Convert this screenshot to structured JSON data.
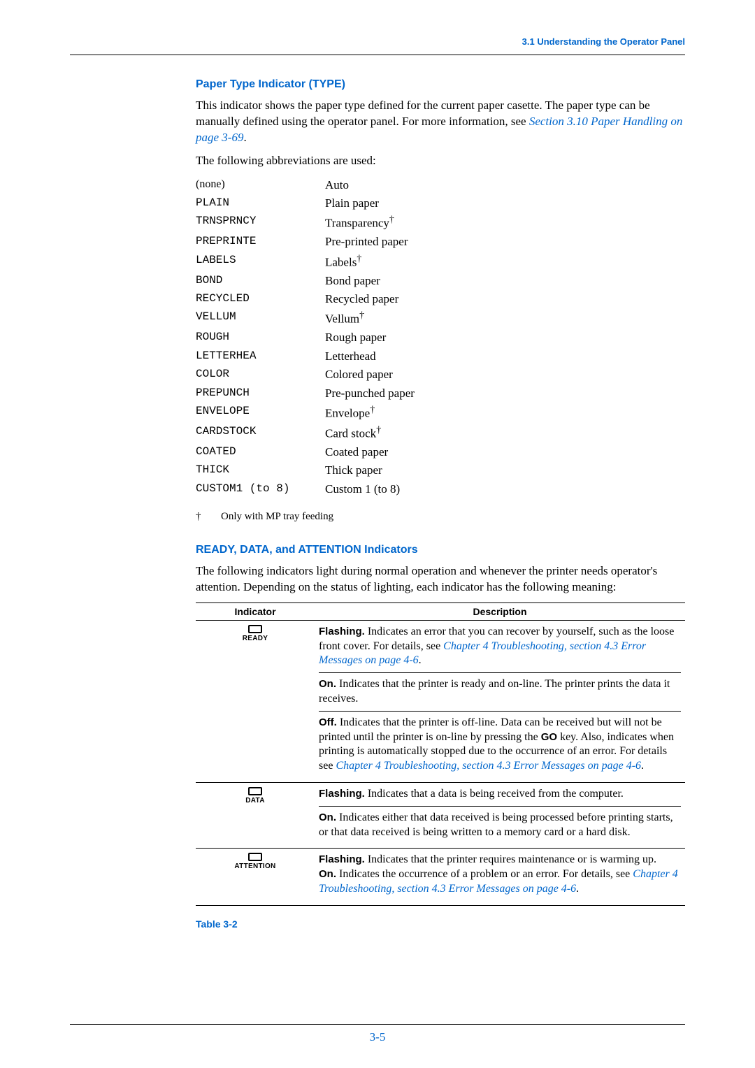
{
  "running_head": "3.1 Understanding the Operator Panel",
  "section1": {
    "title": "Paper Type Indicator (TYPE)",
    "p1a": "This indicator shows the paper type defined for the current paper casette. The paper type can be manually defined using the operator panel. For more information, see ",
    "p1link": "Section 3.10 Paper Handling on page 3-69",
    "p1b": ".",
    "p2": "The following abbreviations are used:"
  },
  "abbrevs": [
    {
      "code": "(none)",
      "desc": "Auto",
      "plain": true
    },
    {
      "code": "PLAIN",
      "desc": "Plain paper"
    },
    {
      "code": "TRNSPRNCY",
      "desc": "Transparency",
      "dag": true
    },
    {
      "code": "PREPRINTE",
      "desc": "Pre-printed paper"
    },
    {
      "code": "LABELS",
      "desc": "Labels",
      "dag": true
    },
    {
      "code": "BOND",
      "desc": "Bond paper"
    },
    {
      "code": "RECYCLED",
      "desc": "Recycled paper"
    },
    {
      "code": "VELLUM",
      "desc": "Vellum",
      "dag": true
    },
    {
      "code": "ROUGH",
      "desc": "Rough paper"
    },
    {
      "code": "LETTERHEA",
      "desc": "Letterhead"
    },
    {
      "code": "COLOR",
      "desc": "Colored paper"
    },
    {
      "code": "PREPUNCH",
      "desc": "Pre-punched paper"
    },
    {
      "code": "ENVELOPE",
      "desc": "Envelope",
      "dag": true
    },
    {
      "code": "CARDSTOCK",
      "desc": "Card stock",
      "dag": true
    },
    {
      "code": "COATED",
      "desc": "Coated paper"
    },
    {
      "code": "THICK",
      "desc": "Thick paper"
    },
    {
      "code": "CUSTOM1 (to 8)",
      "desc": "Custom 1 (to 8)"
    }
  ],
  "footnote": {
    "mark": "†",
    "text": "Only with MP tray feeding"
  },
  "section2": {
    "title": "READY, DATA, and ATTENTION Indicators",
    "p1": "The following indicators light during normal operation and whenever the printer needs operator's attention. Depending on the status of lighting, each indicator has the following meaning:"
  },
  "table": {
    "h1": "Indicator",
    "h2": "Description",
    "rows": [
      {
        "label": "READY",
        "blocks": [
          {
            "term": "Flashing.",
            "text": " Indicates an error that you can recover by yourself, such as the loose front cover. For details, see ",
            "link": "Chapter 4 Troubleshooting, section 4.3 Error Messages on page 4-6",
            "tail": "."
          },
          {
            "term": "On.",
            "text": " Indicates that the printer is ready and on-line. The printer prints the data it receives."
          },
          {
            "term": "Off.",
            "text": " Indicates that the printer is off-line. Data can be received but will not be printed until the printer is on-line by pressing the ",
            "go": "GO",
            "text2": " key. Also, indicates when printing is automatically stopped due to the occurrence of an error. For details see ",
            "link": "Chapter 4 Troubleshooting, section 4.3 Error Messages on page 4-6",
            "tail": "."
          }
        ]
      },
      {
        "label": "DATA",
        "blocks": [
          {
            "term": "Flashing.",
            "text": " Indicates that a data is being received from the computer."
          },
          {
            "term": "On.",
            "text": " Indicates either that data received is being processed before printing starts, or that data received is being written to a memory card or a hard disk."
          }
        ]
      },
      {
        "label": "ATTENTION",
        "blocks": [
          {
            "term": "Flashing.",
            "text": " Indicates that the printer requires maintenance or is warming up.",
            "nobreak_next": true
          },
          {
            "term": "On.",
            "text": " Indicates the occurrence of a problem or an error. For details, see ",
            "link": "Chapter 4 Troubleshooting, section 4.3 Error Messages on page 4-6",
            "tail": "."
          }
        ]
      }
    ],
    "caption": "Table 3-2"
  },
  "page_num": "3-5"
}
